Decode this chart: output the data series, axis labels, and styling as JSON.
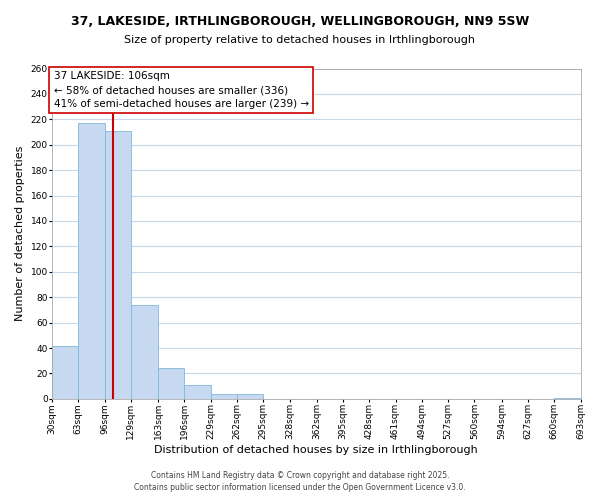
{
  "title": "37, LAKESIDE, IRTHLINGBOROUGH, WELLINGBOROUGH, NN9 5SW",
  "subtitle": "Size of property relative to detached houses in Irthlingborough",
  "xlabel": "Distribution of detached houses by size in Irthlingborough",
  "ylabel": "Number of detached properties",
  "bins": [
    30,
    63,
    96,
    129,
    163,
    196,
    229,
    262,
    295,
    328,
    362,
    395,
    428,
    461,
    494,
    527,
    560,
    594,
    627,
    660,
    693
  ],
  "bar_heights": [
    42,
    217,
    211,
    74,
    24,
    11,
    4,
    4,
    0,
    0,
    0,
    0,
    0,
    0,
    0,
    0,
    0,
    0,
    0,
    1
  ],
  "bar_color": "#c6d9f0",
  "bar_edge_color": "#7fb9d9",
  "vline_x": 106,
  "vline_color": "#cc0000",
  "ylim": [
    0,
    260
  ],
  "yticks": [
    0,
    20,
    40,
    60,
    80,
    100,
    120,
    140,
    160,
    180,
    200,
    220,
    240,
    260
  ],
  "annotation_title": "37 LAKESIDE: 106sqm",
  "annotation_line1": "← 58% of detached houses are smaller (336)",
  "annotation_line2": "41% of semi-detached houses are larger (239) →",
  "annotation_box_color": "#ffffff",
  "annotation_box_edge": "#cc0000",
  "footer_line1": "Contains HM Land Registry data © Crown copyright and database right 2025.",
  "footer_line2": "Contains public sector information licensed under the Open Government Licence v3.0.",
  "tick_labels": [
    "30sqm",
    "63sqm",
    "96sqm",
    "129sqm",
    "163sqm",
    "196sqm",
    "229sqm",
    "262sqm",
    "295sqm",
    "328sqm",
    "362sqm",
    "395sqm",
    "428sqm",
    "461sqm",
    "494sqm",
    "527sqm",
    "560sqm",
    "594sqm",
    "627sqm",
    "660sqm",
    "693sqm"
  ],
  "grid_color": "#c8d8e8",
  "background_color": "#ffffff",
  "title_fontsize": 9,
  "subtitle_fontsize": 8,
  "axis_label_fontsize": 8,
  "tick_fontsize": 6.5,
  "annotation_fontsize": 7.5,
  "footer_fontsize": 5.5
}
